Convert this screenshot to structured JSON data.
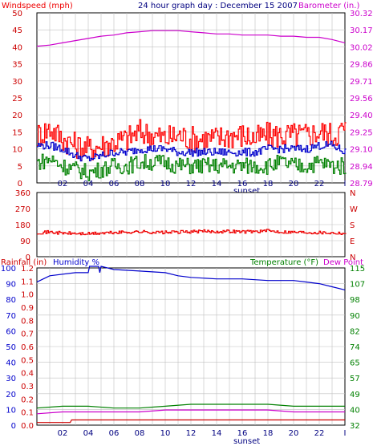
{
  "header": {
    "title": "24 hour graph day : December 15 2007",
    "left_label": "Windspeed (mph)",
    "right_label": "Barometer (in.)"
  },
  "colors": {
    "windspeed": "#ff0000",
    "gust_line": "#0000cc",
    "wind_min": "#008000",
    "barometer": "#cc00cc",
    "direction": "#ee0000",
    "humidity": "#0000cc",
    "temperature": "#008000",
    "dewpoint": "#cc00cc",
    "rainfall": "#cc0000",
    "grid": "#c0c0c0"
  },
  "chart_data": [
    {
      "type": "line",
      "name": "wind-barometer",
      "x_ticks": [
        "02",
        "04",
        "06",
        "08",
        "10",
        "12",
        "14",
        "16",
        "18",
        "20",
        "22",
        "I"
      ],
      "x_marker": "sunset",
      "left_axis": {
        "label": "Windspeed (mph)",
        "ticks": [
          "50",
          "45",
          "40",
          "35",
          "30",
          "25",
          "20",
          "15",
          "10",
          "5",
          "0"
        ],
        "ylim": [
          0,
          50
        ]
      },
      "right_axis": {
        "label": "Barometer (in.)",
        "ticks": [
          "30.32",
          "30.17",
          "30.02",
          "29.86",
          "29.71",
          "29.56",
          "29.40",
          "29.25",
          "29.10",
          "28.94",
          "28.79"
        ],
        "ylim": [
          28.79,
          30.32
        ]
      },
      "series": [
        {
          "key": "barometer",
          "axis": "right",
          "x": [
            0,
            1,
            2,
            3,
            4,
            5,
            6,
            7,
            8,
            9,
            10,
            11,
            12,
            13,
            14,
            15,
            16,
            17,
            18,
            19,
            20,
            21,
            22,
            23,
            24
          ],
          "values": [
            30.02,
            30.03,
            30.05,
            30.07,
            30.09,
            30.11,
            30.12,
            30.14,
            30.15,
            30.16,
            30.16,
            30.16,
            30.15,
            30.14,
            30.13,
            30.13,
            30.12,
            30.12,
            30.12,
            30.11,
            30.11,
            30.1,
            30.1,
            30.08,
            30.05
          ]
        },
        {
          "key": "windspeed",
          "axis": "left",
          "x": [
            0,
            1,
            2,
            3,
            4,
            5,
            6,
            7,
            8,
            9,
            10,
            11,
            12,
            13,
            14,
            15,
            16,
            17,
            18,
            19,
            20,
            21,
            22,
            23,
            24
          ],
          "values": [
            14,
            16,
            13,
            11,
            10,
            11,
            12,
            13,
            15,
            14,
            13,
            14,
            13,
            13,
            13,
            14,
            14,
            13,
            14,
            14,
            14,
            14,
            15,
            14,
            16
          ]
        },
        {
          "key": "gust_line",
          "axis": "left",
          "x": [
            0,
            1,
            2,
            3,
            4,
            5,
            6,
            7,
            8,
            9,
            10,
            11,
            12,
            13,
            14,
            15,
            16,
            17,
            18,
            19,
            20,
            21,
            22,
            23,
            24
          ],
          "values": [
            11,
            11,
            10,
            8,
            7,
            8,
            9,
            9,
            10,
            10,
            10,
            9,
            9,
            9,
            9,
            9,
            9,
            9,
            10,
            10,
            10,
            10,
            11,
            11,
            9
          ]
        },
        {
          "key": "wind_min",
          "axis": "left",
          "x": [
            0,
            1,
            2,
            3,
            4,
            5,
            6,
            7,
            8,
            9,
            10,
            11,
            12,
            13,
            14,
            15,
            16,
            17,
            18,
            19,
            20,
            21,
            22,
            23,
            24
          ],
          "values": [
            6,
            7,
            5,
            4,
            3,
            4,
            5,
            5,
            6,
            6,
            6,
            5,
            5,
            5,
            5,
            5,
            5,
            5,
            5,
            6,
            5,
            5,
            6,
            5,
            5
          ]
        }
      ]
    },
    {
      "type": "line",
      "name": "wind-direction",
      "left_axis": {
        "ticks": [
          "360",
          "270",
          "180",
          "90",
          "0"
        ],
        "ylim": [
          0,
          360
        ]
      },
      "right_axis": {
        "ticks": [
          "N",
          "W",
          "S",
          "E",
          "N"
        ]
      },
      "series": [
        {
          "key": "direction",
          "x": [
            0,
            1,
            2,
            3,
            4,
            5,
            6,
            7,
            8,
            9,
            10,
            11,
            12,
            13,
            14,
            15,
            16,
            17,
            18,
            19,
            20,
            21,
            22,
            23,
            24
          ],
          "values": [
            135,
            138,
            132,
            130,
            128,
            132,
            135,
            138,
            140,
            137,
            136,
            138,
            140,
            142,
            141,
            143,
            140,
            142,
            145,
            140,
            138,
            137,
            136,
            134,
            132
          ]
        }
      ]
    },
    {
      "type": "line",
      "name": "rain-humidity-temperature",
      "x_ticks": [
        "02",
        "04",
        "06",
        "08",
        "10",
        "12",
        "14",
        "16",
        "18",
        "20",
        "22",
        "I"
      ],
      "x_marker": "sunset",
      "labels": {
        "rainfall": "Rainfall (in)",
        "humidity": "Humidity %",
        "temperature": "Temperature (°F)",
        "dewpoint": "Dew Point"
      },
      "left_axis_humidity": {
        "ticks": [
          "100",
          "90",
          "80",
          "70",
          "60",
          "50",
          "40",
          "30",
          "20",
          "10",
          "0"
        ],
        "ylim": [
          0,
          100
        ]
      },
      "left_axis_rain": {
        "ticks": [
          "1.2",
          "1.1",
          "1.0",
          "0.9",
          "0.8",
          "0.7",
          "0.6",
          "0.5",
          "0.4",
          "0.3",
          "0.2",
          "0.1",
          "0.0"
        ]
      },
      "right_axis": {
        "label": "Temperature (°F)",
        "ticks": [
          "115",
          "107",
          "98",
          "90",
          "82",
          "74",
          "65",
          "57",
          "49",
          "40",
          "32"
        ],
        "ylim": [
          32,
          115
        ]
      },
      "series": [
        {
          "key": "humidity",
          "axis": "left",
          "x": [
            0,
            0.5,
            1,
            3,
            4,
            4.1,
            4.8,
            4.9,
            5,
            6,
            8,
            10,
            11,
            12,
            14,
            16,
            18,
            20,
            21,
            22,
            23,
            24
          ],
          "values": [
            91,
            93,
            95,
            97,
            97,
            101,
            101,
            97,
            101,
            99,
            98,
            97,
            95,
            94,
            93,
            93,
            92,
            92,
            91,
            90,
            88,
            86
          ]
        },
        {
          "key": "temperature",
          "axis": "right",
          "x": [
            0,
            2,
            4,
            6,
            8,
            10,
            12,
            14,
            16,
            18,
            20,
            22,
            24
          ],
          "values": [
            41,
            42,
            42,
            41,
            41,
            42,
            43,
            43,
            43,
            43,
            42,
            42,
            42
          ]
        },
        {
          "key": "dewpoint",
          "axis": "right",
          "x": [
            0,
            2,
            4,
            6,
            8,
            10,
            12,
            14,
            16,
            18,
            20,
            22,
            24
          ],
          "values": [
            38,
            39,
            39,
            39,
            39,
            40,
            40,
            40,
            40,
            40,
            39,
            39,
            39
          ]
        },
        {
          "key": "rainfall",
          "axis": "rain",
          "x": [
            0,
            2.6,
            2.7,
            24
          ],
          "values": [
            0.02,
            0.02,
            0.04,
            0.04
          ]
        }
      ]
    }
  ]
}
